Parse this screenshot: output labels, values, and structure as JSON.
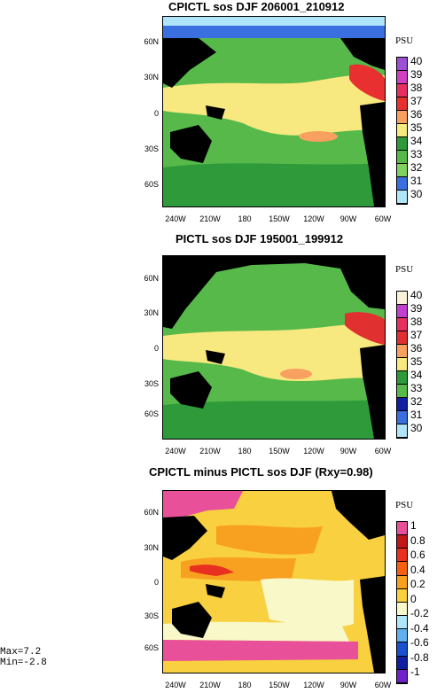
{
  "panels": [
    {
      "title": "CPICTL sos DJF 206001_210912",
      "unit": "PSU",
      "lat_labels": [
        "60N",
        "30N",
        "0",
        "30S",
        "60S"
      ],
      "lon_labels": [
        "240W",
        "210W",
        "180",
        "150W",
        "120W",
        "90W",
        "60W"
      ],
      "levels": [
        "40",
        "39",
        "38",
        "37",
        "36",
        "35",
        "34",
        "33",
        "32",
        "31",
        "30"
      ],
      "level_colors": [
        "#9c4fd2",
        "#d040c0",
        "#e83060",
        "#e83030",
        "#f8a060",
        "#f8e880",
        "#2e9a3a",
        "#56b94a",
        "#82d060",
        "#3a6fe0",
        "#b0e4f8"
      ]
    },
    {
      "title": "PICTL sos DJF 195001_199912",
      "unit": "PSU",
      "lat_labels": [
        "60N",
        "30N",
        "0",
        "30S",
        "60S"
      ],
      "lon_labels": [
        "240W",
        "210W",
        "180",
        "150W",
        "120W",
        "90W",
        "60W"
      ],
      "levels": [
        "40",
        "39",
        "38",
        "37",
        "36",
        "35",
        "34",
        "33",
        "32",
        "31",
        "30"
      ],
      "level_colors": [
        "#f8f0d8",
        "#c040d0",
        "#e83060",
        "#e03030",
        "#f8a060",
        "#f8e880",
        "#2e9a3a",
        "#56b94a",
        "#1020a0",
        "#3a6fe0",
        "#b0e4f8"
      ]
    },
    {
      "title": "CPICTL minus PICTL sos DJF (Rxy=0.98)",
      "unit": "PSU",
      "lat_labels": [
        "60N",
        "30N",
        "0",
        "30S",
        "60S"
      ],
      "lon_labels": [
        "240W",
        "210W",
        "180",
        "150W",
        "120W",
        "90W",
        "60W"
      ],
      "levels": [
        "1",
        "0.8",
        "0.6",
        "0.4",
        "0.2",
        "0",
        "-0.2",
        "-0.4",
        "-0.6",
        "-0.8",
        "-1"
      ],
      "level_colors": [
        "#e8509a",
        "#c01818",
        "#e83020",
        "#f86010",
        "#f8a020",
        "#f8d040",
        "#f8f8c8",
        "#b0e4f8",
        "#60b0f0",
        "#1850d0",
        "#1020a0",
        "#7020c8"
      ]
    }
  ],
  "stats": {
    "max": "Max=7.2",
    "min": "Min=-2.8"
  },
  "colors": {
    "land": "#000000"
  }
}
